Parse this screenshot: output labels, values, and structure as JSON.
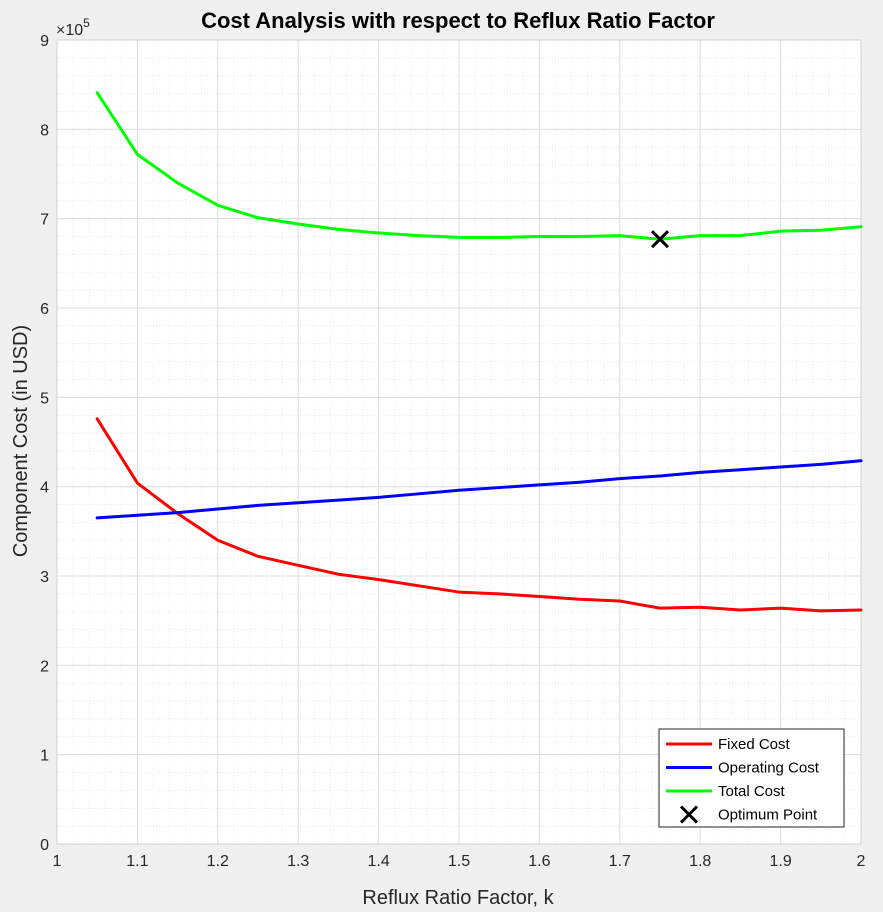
{
  "chart_data": {
    "type": "line",
    "title": "Cost Analysis with respect to Reflux Ratio Factor",
    "xlabel": "Reflux Ratio Factor, k",
    "ylabel": "Component Cost (in USD)",
    "y_exponent_label": "×10",
    "y_exponent_power": "5",
    "xlim": [
      1,
      2
    ],
    "ylim": [
      0,
      9
    ],
    "y_scale_note": "values in units of 10^5 USD",
    "x_ticks": [
      "1",
      "1.1",
      "1.2",
      "1.3",
      "1.4",
      "1.5",
      "1.6",
      "1.7",
      "1.8",
      "1.9",
      "2"
    ],
    "y_ticks": [
      "0",
      "1",
      "2",
      "3",
      "4",
      "5",
      "6",
      "7",
      "8",
      "9"
    ],
    "grid": true,
    "minor_grid": true,
    "legend_position": "bottom-right",
    "x": [
      1.05,
      1.1,
      1.15,
      1.2,
      1.25,
      1.3,
      1.35,
      1.4,
      1.45,
      1.5,
      1.55,
      1.6,
      1.65,
      1.7,
      1.75,
      1.8,
      1.85,
      1.9,
      1.95,
      2.0
    ],
    "series": [
      {
        "name": "Fixed Cost",
        "color": "#ff0000",
        "values": [
          4.76,
          4.04,
          3.7,
          3.4,
          3.22,
          3.12,
          3.02,
          2.96,
          2.89,
          2.82,
          2.8,
          2.77,
          2.74,
          2.72,
          2.64,
          2.65,
          2.62,
          2.64,
          2.61,
          2.62
        ]
      },
      {
        "name": "Operating Cost",
        "color": "#0000ff",
        "values": [
          3.65,
          3.68,
          3.71,
          3.75,
          3.79,
          3.82,
          3.85,
          3.88,
          3.92,
          3.96,
          3.99,
          4.02,
          4.05,
          4.09,
          4.12,
          4.16,
          4.19,
          4.22,
          4.25,
          4.29
        ]
      },
      {
        "name": "Total Cost",
        "color": "#00ff00",
        "values": [
          8.41,
          7.72,
          7.4,
          7.15,
          7.01,
          6.94,
          6.88,
          6.84,
          6.81,
          6.79,
          6.79,
          6.8,
          6.8,
          6.81,
          6.77,
          6.81,
          6.81,
          6.86,
          6.87,
          6.91
        ]
      }
    ],
    "optimum_point": {
      "name": "Optimum Point",
      "marker": "x",
      "color": "#000000",
      "x": 1.75,
      "y": 6.77
    }
  }
}
